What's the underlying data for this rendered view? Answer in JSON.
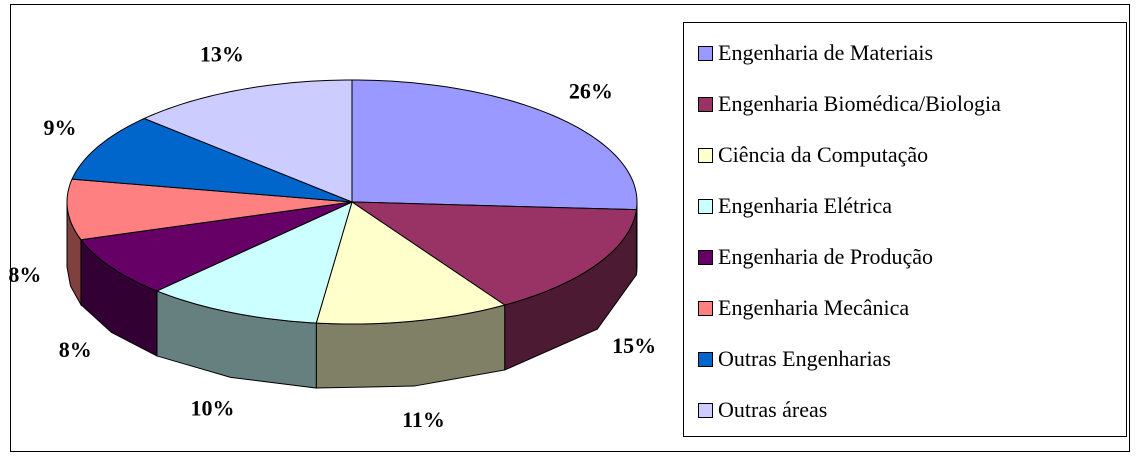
{
  "chart_data": {
    "type": "pie",
    "categories": [
      "Engenharia de Materiais",
      "Engenharia Biomédica/Biologia",
      "Ciência da Computação",
      "Engenharia Elétrica",
      "Engenharia de Produção",
      "Engenharia Mecânica",
      "Outras Engenharias",
      "Outras áreas"
    ],
    "values": [
      26,
      15,
      11,
      10,
      8,
      8,
      9,
      13
    ],
    "value_labels": [
      "26%",
      "15%",
      "11%",
      "10%",
      "8%",
      "8%",
      "9%",
      "13%"
    ],
    "colors": [
      "#9999ff",
      "#993366",
      "#ffffcc",
      "#ccffff",
      "#660066",
      "#ff8080",
      "#0066cc",
      "#ccccff"
    ],
    "legend": "right"
  }
}
